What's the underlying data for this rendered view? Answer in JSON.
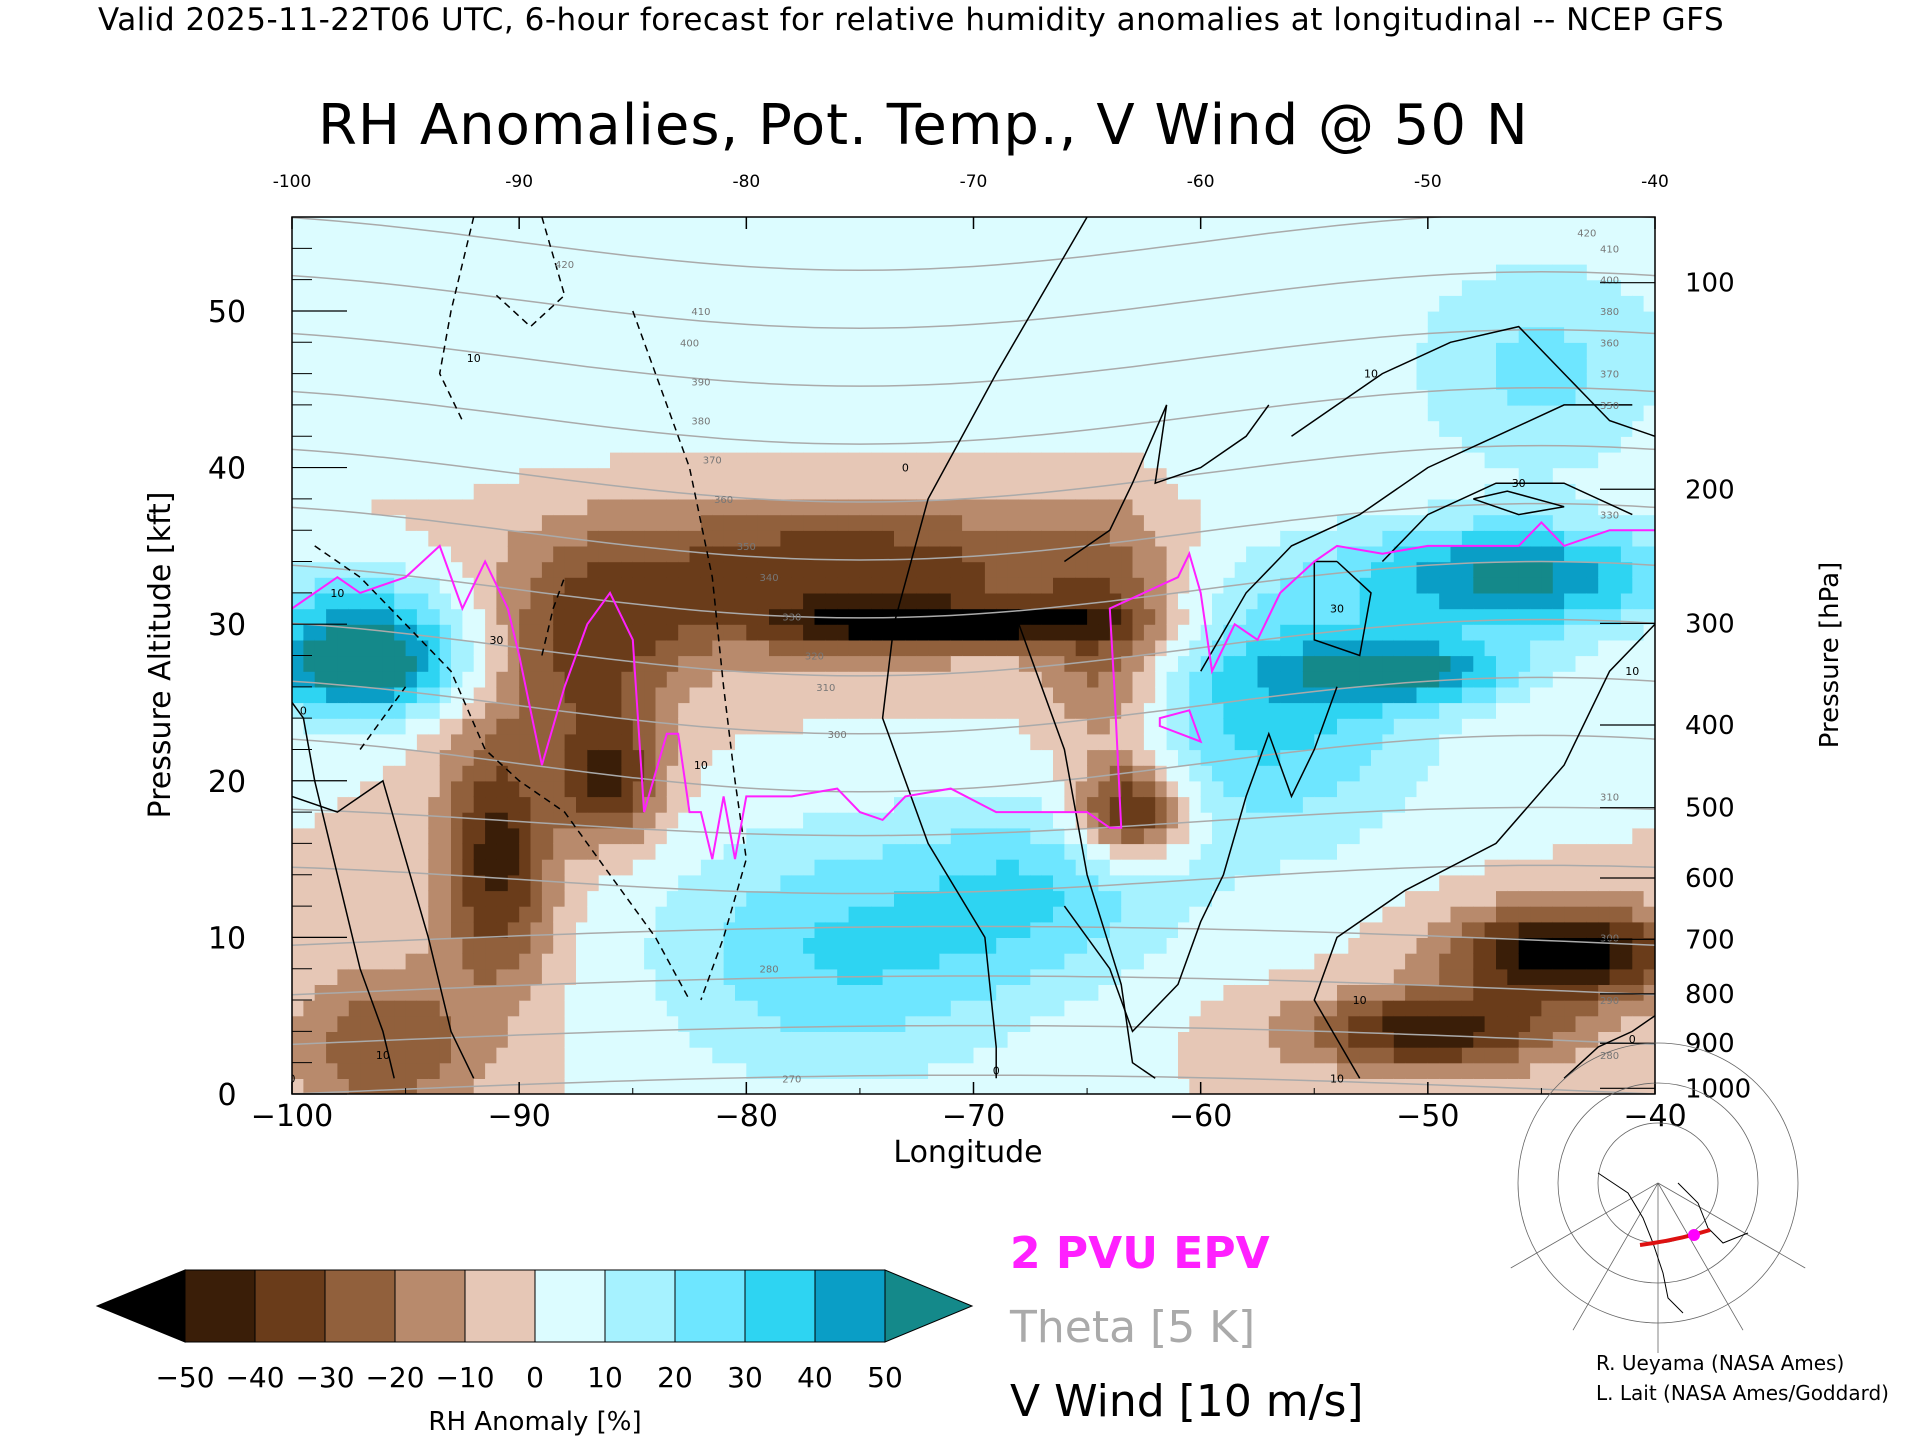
{
  "header": "Valid 2025-11-22T06 UTC, 6-hour forecast for relative humidity anomalies at longitudinal -- NCEP GFS",
  "chart_data": {
    "type": "heatmap",
    "title": "RH Anomalies, Pot. Temp., V Wind @ 50 N",
    "xlabel": "Longitude",
    "ylabel": "Pressure Altitude [kft]",
    "y2label": "Pressure [hPa]",
    "xlim": [
      -100,
      -40
    ],
    "ylim": [
      0,
      56
    ],
    "x_ticks": [
      -100,
      -90,
      -80,
      -70,
      -60,
      -50,
      -40
    ],
    "x_tick_labels": [
      "−100",
      "−90",
      "−80",
      "−70",
      "−60",
      "−50",
      "−40"
    ],
    "top_tick_labels": [
      "-100",
      "-90",
      "-80",
      "-70",
      "-60",
      "-50",
      "-40"
    ],
    "y_ticks": [
      0,
      10,
      20,
      30,
      40,
      50
    ],
    "pressure_ticks": [
      {
        "hPa": 100,
        "label": "100"
      },
      {
        "hPa": 200,
        "label": "200"
      },
      {
        "hPa": 300,
        "label": "300"
      },
      {
        "hPa": 400,
        "label": "400"
      },
      {
        "hPa": 500,
        "label": "500"
      },
      {
        "hPa": 600,
        "label": "600"
      },
      {
        "hPa": 700,
        "label": "700"
      },
      {
        "hPa": 800,
        "label": "800"
      },
      {
        "hPa": 900,
        "label": "900"
      },
      {
        "hPa": 1000,
        "label": "1000"
      }
    ],
    "colorbar": {
      "label": "RH Anomaly [%]",
      "levels": [
        -50,
        -40,
        -30,
        -20,
        -10,
        0,
        10,
        20,
        30,
        40,
        50
      ],
      "tick_labels": [
        "−50",
        "−40",
        "−30",
        "−20",
        "−10",
        "0",
        "10",
        "20",
        "30",
        "40",
        "50"
      ],
      "colors": [
        "#000000",
        "#3a1e08",
        "#6a3c1a",
        "#91603c",
        "#b88a6c",
        "#e6c7b6",
        "#dcfcff",
        "#a6f2ff",
        "#6ee6ff",
        "#2ed4f2",
        "#0a9ec6",
        "#14898a"
      ]
    },
    "rh_anomaly_samples": [
      {
        "lon": -96,
        "kft": 27,
        "rh": 40
      },
      {
        "lon": -91,
        "kft": 15,
        "rh": -50
      },
      {
        "lon": -87,
        "kft": 22,
        "rh": -40
      },
      {
        "lon": -77,
        "kft": 35,
        "rh": -40
      },
      {
        "lon": -71,
        "kft": 30,
        "rh": -50
      },
      {
        "lon": -76,
        "kft": 8,
        "rh": 20
      },
      {
        "lon": -66,
        "kft": 12,
        "rh": 20
      },
      {
        "lon": -63,
        "kft": 18,
        "rh": -50
      },
      {
        "lon": -57,
        "kft": 25,
        "rh": 30
      },
      {
        "lon": -52,
        "kft": 27,
        "rh": 40
      },
      {
        "lon": -46,
        "kft": 33,
        "rh": 50
      },
      {
        "lon": -70,
        "kft": 50,
        "rh": 0
      },
      {
        "lon": -45,
        "kft": 10,
        "rh": -50
      },
      {
        "lon": -50,
        "kft": 4,
        "rh": -40
      }
    ],
    "theta_levels": [
      270,
      280,
      290,
      300,
      310,
      320,
      330,
      340,
      350,
      360,
      370,
      380,
      390,
      400,
      410,
      420
    ],
    "theta_contour_labels": [
      {
        "text": "270",
        "lon": -78,
        "kft": 1
      },
      {
        "text": "280",
        "lon": -79,
        "kft": 8
      },
      {
        "text": "300",
        "lon": -76,
        "kft": 23
      },
      {
        "text": "310",
        "lon": -76.5,
        "kft": 26
      },
      {
        "text": "320",
        "lon": -77,
        "kft": 28
      },
      {
        "text": "330",
        "lon": -78,
        "kft": 30.5
      },
      {
        "text": "340",
        "lon": -79,
        "kft": 33
      },
      {
        "text": "350",
        "lon": -80,
        "kft": 35
      },
      {
        "text": "360",
        "lon": -81,
        "kft": 38
      },
      {
        "text": "370",
        "lon": -81.5,
        "kft": 40.5
      },
      {
        "text": "380",
        "lon": -82,
        "kft": 43
      },
      {
        "text": "390",
        "lon": -82,
        "kft": 45.5
      },
      {
        "text": "400",
        "lon": -82.5,
        "kft": 48
      },
      {
        "text": "410",
        "lon": -82,
        "kft": 50
      },
      {
        "text": "420",
        "lon": -88,
        "kft": 53
      },
      {
        "text": "420",
        "lon": -43,
        "kft": 55
      },
      {
        "text": "410",
        "lon": -42,
        "kft": 54
      },
      {
        "text": "400",
        "lon": -42,
        "kft": 52
      },
      {
        "text": "380",
        "lon": -42,
        "kft": 50
      },
      {
        "text": "360",
        "lon": -42,
        "kft": 48
      },
      {
        "text": "370",
        "lon": -42,
        "kft": 46
      },
      {
        "text": "350",
        "lon": -42,
        "kft": 44
      },
      {
        "text": "330",
        "lon": -42,
        "kft": 37
      },
      {
        "text": "310",
        "lon": -42,
        "kft": 19
      },
      {
        "text": "300",
        "lon": -42,
        "kft": 10
      },
      {
        "text": "290",
        "lon": -42,
        "kft": 6
      },
      {
        "text": "280",
        "lon": -42,
        "kft": 2.5
      }
    ],
    "vwind_contour_labels": [
      {
        "text": "0",
        "lon": -73,
        "kft": 40
      },
      {
        "text": "10",
        "lon": -52.5,
        "kft": 46
      },
      {
        "text": "30",
        "lon": -46,
        "kft": 39
      },
      {
        "text": "30",
        "lon": -54,
        "kft": 31
      },
      {
        "text": "10",
        "lon": -41,
        "kft": 27
      },
      {
        "text": "0",
        "lon": -99.5,
        "kft": 24.5
      },
      {
        "text": "10",
        "lon": -98,
        "kft": 32
      },
      {
        "text": "10",
        "lon": -92,
        "kft": 47
      },
      {
        "text": "30",
        "lon": -91,
        "kft": 29
      },
      {
        "text": "10",
        "lon": -82,
        "kft": 21
      },
      {
        "text": "10",
        "lon": -53,
        "kft": 6
      },
      {
        "text": "10",
        "lon": -54,
        "kft": 1
      },
      {
        "text": "0",
        "lon": -41,
        "kft": 3.5
      },
      {
        "text": "0",
        "lon": -69,
        "kft": 1.5
      },
      {
        "text": "10",
        "lon": -96,
        "kft": 2.5
      },
      {
        "text": "0",
        "lon": -100,
        "kft": 1
      }
    ],
    "epv_2pvu_line": [
      [
        -100,
        31
      ],
      [
        -98,
        33
      ],
      [
        -97,
        32
      ],
      [
        -95,
        33
      ],
      [
        -93.5,
        35
      ],
      [
        -92.5,
        31
      ],
      [
        -91.5,
        34
      ],
      [
        -90.5,
        31
      ],
      [
        -90,
        28
      ],
      [
        -89,
        21
      ],
      [
        -88,
        26
      ],
      [
        -87,
        30
      ],
      [
        -86,
        32
      ],
      [
        -85,
        29
      ],
      [
        -84.5,
        18
      ],
      [
        -83.5,
        23
      ],
      [
        -83,
        23
      ],
      [
        -82.5,
        18
      ],
      [
        -82,
        18
      ],
      [
        -81.5,
        15
      ],
      [
        -81,
        19
      ],
      [
        -80.5,
        15
      ],
      [
        -80,
        19
      ],
      [
        -78,
        19
      ],
      [
        -76,
        19.5
      ],
      [
        -75,
        18
      ],
      [
        -74,
        17.5
      ],
      [
        -73,
        19
      ],
      [
        -71,
        19.5
      ],
      [
        -69,
        18
      ],
      [
        -67,
        18
      ],
      [
        -65,
        18
      ],
      [
        -64,
        17
      ],
      [
        -63.5,
        17
      ],
      [
        -63.8,
        26
      ],
      [
        -64,
        31
      ],
      [
        -62.5,
        32
      ],
      [
        -61,
        33
      ],
      [
        -60.5,
        34.5
      ],
      [
        -60,
        32
      ],
      [
        -59.5,
        27
      ],
      [
        -58.5,
        30
      ],
      [
        -57.5,
        29
      ],
      [
        -56.5,
        32
      ],
      [
        -55,
        34
      ],
      [
        -54,
        35
      ],
      [
        -52,
        34.5
      ],
      [
        -50,
        35
      ],
      [
        -48,
        35
      ],
      [
        -46,
        35
      ],
      [
        -45,
        36.5
      ],
      [
        -44,
        35
      ],
      [
        -42,
        36
      ],
      [
        -40,
        36
      ]
    ],
    "epv_small_loop": [
      [
        -61.8,
        23.5
      ],
      [
        -60,
        22.5
      ],
      [
        -60.5,
        24.5
      ],
      [
        -61.8,
        24
      ]
    ]
  },
  "legend": {
    "epv_label": "2 PVU EPV",
    "theta_label": "Theta [5 K]",
    "vwind_label": "V Wind [10 m/s]",
    "epv_color": "#ff20ff",
    "theta_color": "#aaaaaa",
    "vwind_color": "#000000"
  },
  "credits": {
    "line1": "R. Ueyama (NASA Ames)",
    "line2": "L. Lait (NASA Ames/Goddard)"
  },
  "inset": {
    "track_color": "#dd1111",
    "marker_color": "#ff00ff"
  }
}
